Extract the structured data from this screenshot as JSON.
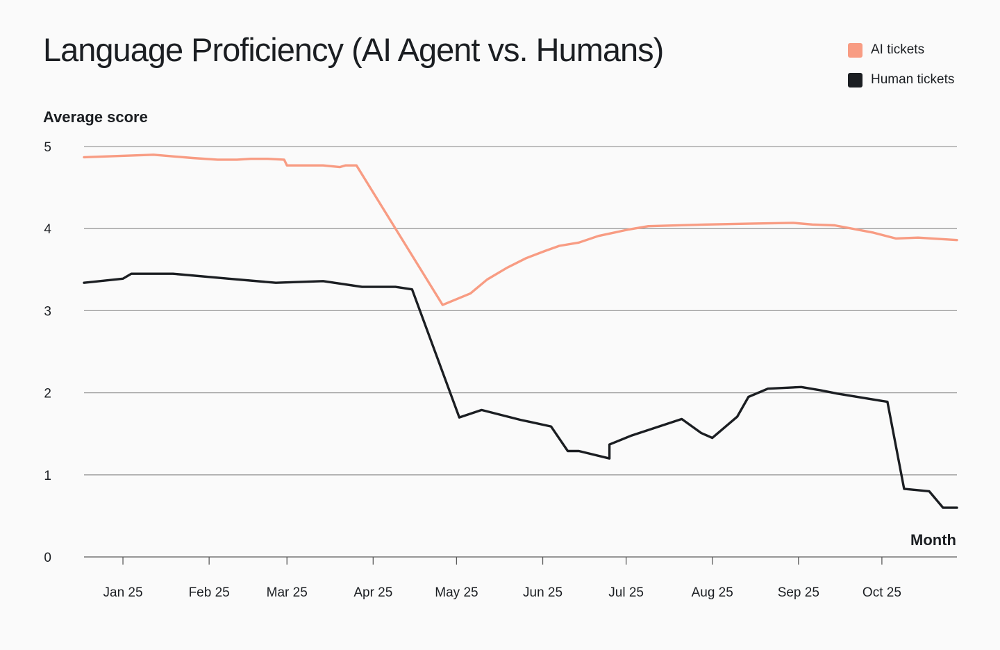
{
  "chart_data": {
    "type": "line",
    "title": "Language Proficiency (AI Agent vs. Humans)",
    "ylabel": "Average score",
    "xlabel": "Month",
    "ylim": [
      0,
      5
    ],
    "yticks": [
      "0",
      "1",
      "2",
      "3",
      "4",
      "5"
    ],
    "x_tick_labels": [
      "Jan 25",
      "Feb 25",
      "Mar 25",
      "Apr 25",
      "May 25",
      "Jun 25",
      "Jul 25",
      "Aug 25",
      "Sep 25",
      "Oct 25"
    ],
    "x_domain": [
      "2024-12-18",
      "2025-10-28"
    ],
    "grid": true,
    "legend_position": "top-right",
    "series": [
      {
        "name": "AI tickets",
        "color": "#f89c83",
        "x": [
          "2024-12-18",
          "2025-01-12",
          "2025-01-26",
          "2025-02-04",
          "2025-02-11",
          "2025-02-16",
          "2025-02-22",
          "2025-02-28",
          "2025-03-01",
          "2025-03-14",
          "2025-03-20",
          "2025-03-22",
          "2025-03-26",
          "2025-04-26",
          "2025-05-06",
          "2025-05-12",
          "2025-05-19",
          "2025-05-26",
          "2025-06-02",
          "2025-06-07",
          "2025-06-14",
          "2025-06-21",
          "2025-07-02",
          "2025-07-09",
          "2025-07-30",
          "2025-08-14",
          "2025-08-30",
          "2025-09-06",
          "2025-09-14",
          "2025-09-28",
          "2025-10-06",
          "2025-10-14",
          "2025-10-28"
        ],
        "y": [
          4.87,
          4.9,
          4.86,
          4.84,
          4.84,
          4.85,
          4.85,
          4.84,
          4.77,
          4.77,
          4.75,
          4.77,
          4.77,
          3.07,
          3.21,
          3.38,
          3.52,
          3.64,
          3.73,
          3.79,
          3.83,
          3.91,
          3.99,
          4.03,
          4.05,
          4.06,
          4.07,
          4.05,
          4.04,
          3.95,
          3.88,
          3.89,
          3.86
        ]
      },
      {
        "name": "Human tickets",
        "color": "#1b1e22",
        "x": [
          "2024-12-18",
          "2025-01-01",
          "2025-01-04",
          "2025-01-19",
          "2025-02-08",
          "2025-02-25",
          "2025-03-14",
          "2025-03-28",
          "2025-04-09",
          "2025-04-15",
          "2025-05-02",
          "2025-05-10",
          "2025-05-24",
          "2025-06-04",
          "2025-06-10",
          "2025-06-14",
          "2025-06-25",
          "2025-06-25",
          "2025-07-03",
          "2025-07-21",
          "2025-07-28",
          "2025-08-01",
          "2025-08-10",
          "2025-08-14",
          "2025-08-21",
          "2025-09-02",
          "2025-09-09",
          "2025-09-15",
          "2025-10-03",
          "2025-10-09",
          "2025-10-18",
          "2025-10-23",
          "2025-10-28"
        ],
        "y": [
          3.34,
          3.39,
          3.45,
          3.45,
          3.39,
          3.34,
          3.36,
          3.29,
          3.29,
          3.26,
          1.7,
          1.79,
          1.67,
          1.59,
          1.29,
          1.29,
          1.2,
          1.37,
          1.48,
          1.68,
          1.51,
          1.45,
          1.71,
          1.95,
          2.05,
          2.07,
          2.03,
          1.99,
          1.89,
          0.83,
          0.8,
          0.6,
          0.6
        ]
      }
    ]
  }
}
